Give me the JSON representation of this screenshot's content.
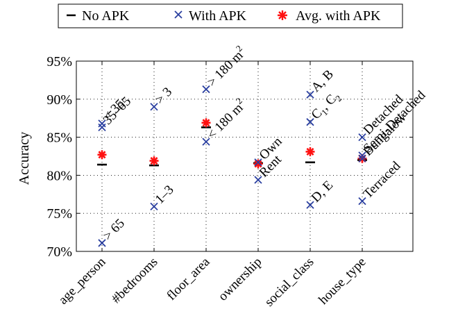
{
  "chart_data": {
    "type": "scatter",
    "ylabel": "Accuracy",
    "ylim": [
      70,
      95
    ],
    "y_ticks": [
      "70%",
      "75%",
      "80%",
      "85%",
      "90%",
      "95%"
    ],
    "categories": [
      "age_person",
      "#bedrooms",
      "floor_area",
      "ownership",
      "social_class",
      "house_type"
    ],
    "grid": "dotted",
    "legend_position": "top",
    "series": [
      {
        "name": "No APK",
        "marker": "dash",
        "color": "#000000",
        "values": [
          81.4,
          81.3,
          86.3,
          81.6,
          81.7,
          82.0
        ]
      },
      {
        "name": "With APK",
        "marker": "x",
        "color": "#2a3f9f",
        "points": [
          {
            "cat": 0,
            "y": 86.8,
            "label": "< 35"
          },
          {
            "cat": 0,
            "y": 86.3,
            "label": "35–65"
          },
          {
            "cat": 0,
            "y": 71.1,
            "label": "> 65"
          },
          {
            "cat": 1,
            "y": 89.0,
            "label": "> 3"
          },
          {
            "cat": 1,
            "y": 75.9,
            "label": "1–3"
          },
          {
            "cat": 2,
            "y": 91.3,
            "label": "> 180 m"
          },
          {
            "cat": 2,
            "y": 84.4,
            "label": "< 180 m"
          },
          {
            "cat": 3,
            "y": 81.7,
            "label": "Own"
          },
          {
            "cat": 3,
            "y": 79.4,
            "label": "Rent"
          },
          {
            "cat": 4,
            "y": 90.6,
            "label": "A, B"
          },
          {
            "cat": 4,
            "y": 87.0,
            "label": "C , C"
          },
          {
            "cat": 4,
            "y": 76.1,
            "label": "D, E"
          },
          {
            "cat": 5,
            "y": 85.0,
            "label": "Detached"
          },
          {
            "cat": 5,
            "y": 82.6,
            "label": "Semi-Detached"
          },
          {
            "cat": 5,
            "y": 82.2,
            "label": "Bungalow"
          },
          {
            "cat": 5,
            "y": 76.6,
            "label": "Terraced"
          }
        ]
      },
      {
        "name": "Avg. with APK",
        "marker": "asterisk",
        "color": "#ff1111",
        "values": [
          82.7,
          81.9,
          86.9,
          81.5,
          83.1,
          82.2
        ]
      }
    ],
    "superscripts": {
      "area_unit": "2",
      "c_sub_1": "1",
      "c_sub_2": "2"
    }
  }
}
